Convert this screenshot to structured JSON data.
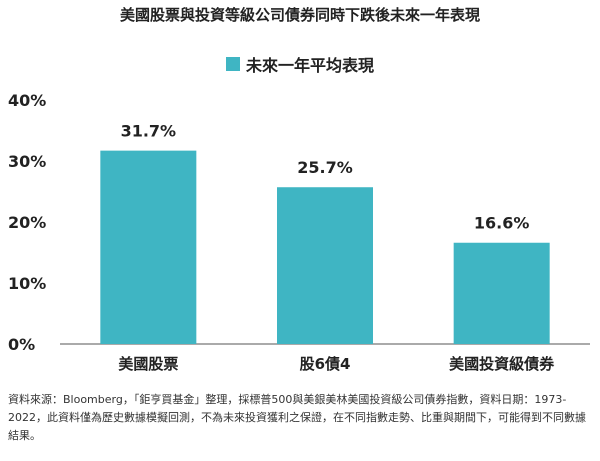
{
  "title": "美國股票與投資等級公司債券同時下跌後未來一年表現",
  "legend_label": "未來一年平均表現",
  "bar_color": "#3FB5C3",
  "footnote": "資料來源：Bloomberg，「鉅亨買基金」整理，採標普500與美銀美林美國投資級公司債券指數，資料日期：1973-2022，此資料僅為歷史數據模擬回測，不為未來投資獲利之保證，在不同指數走勢、比重與期間下，可能得到不同數據結果。",
  "chart_data": {
    "type": "bar",
    "title": "美國股票與投資等級公司債券同時下跌後未來一年表現",
    "categories": [
      "美國股票",
      "股6債4",
      "美國投資級債券"
    ],
    "series": [
      {
        "name": "未來一年平均表現",
        "values": [
          31.7,
          25.7,
          16.6
        ]
      }
    ],
    "data_labels": [
      "31.7%",
      "25.7%",
      "16.6%"
    ],
    "ylim": [
      0,
      40
    ],
    "yticks": [
      0,
      10,
      20,
      30,
      40
    ],
    "ytick_labels": [
      "0%",
      "10%",
      "20%",
      "30%",
      "40%"
    ],
    "grid": false,
    "legend_position": "top-center"
  }
}
